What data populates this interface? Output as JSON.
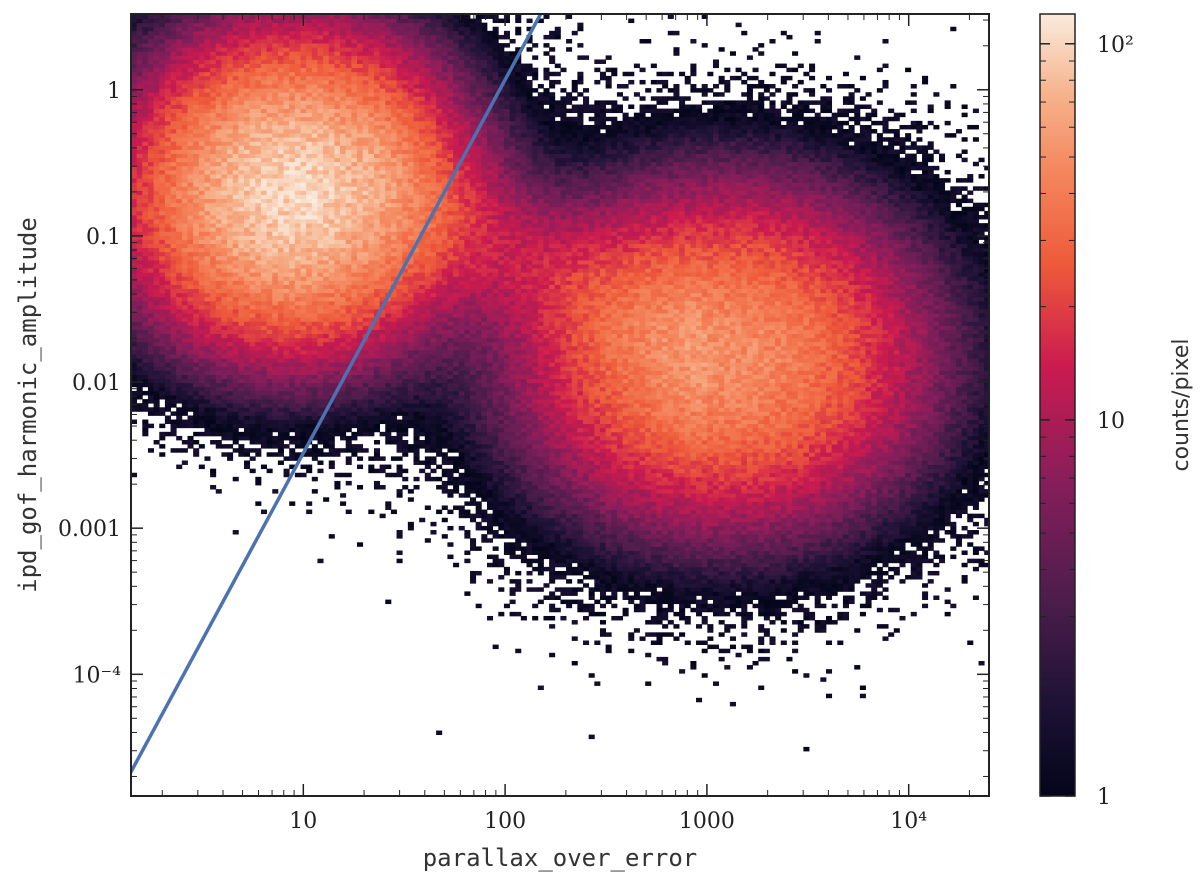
{
  "chart_data": {
    "type": "heatmap",
    "title": "",
    "xlabel": "parallax_over_error",
    "ylabel": "ipd_gof_harmonic_amplitude",
    "x_scale": "log",
    "y_scale": "log",
    "xlim": [
      1.4,
      25000
    ],
    "ylim": [
      1.47e-05,
      3.3
    ],
    "x_ticks": [
      {
        "value": 10,
        "label": "10"
      },
      {
        "value": 100,
        "label": "100"
      },
      {
        "value": 1000,
        "label": "1000"
      },
      {
        "value": 10000,
        "label": "10⁴"
      }
    ],
    "y_ticks": [
      {
        "value": 1,
        "label": "1"
      },
      {
        "value": 0.1,
        "label": "0.1"
      },
      {
        "value": 0.01,
        "label": "0.01"
      },
      {
        "value": 0.001,
        "label": "0.001"
      },
      {
        "value": 0.0001,
        "label": "10⁻⁴"
      }
    ],
    "density_peaks": [
      {
        "name": "",
        "x": 9,
        "y": 0.2,
        "peak_counts": 100
      },
      {
        "name": "",
        "x": 1200,
        "y": 0.015,
        "peak_counts": 50
      }
    ],
    "line": {
      "color": "#4c72b0",
      "points": [
        [
          1.4,
          2.15e-05
        ],
        [
          150,
          3.3
        ]
      ]
    },
    "colorbar": {
      "label": "counts/pixel",
      "scale": "log",
      "range": [
        1,
        120
      ],
      "ticks": [
        {
          "value": 1,
          "label": "1"
        },
        {
          "value": 10,
          "label": "10"
        },
        {
          "value": 100,
          "label": "10²"
        }
      ],
      "colormap": "rocket"
    },
    "grid": false
  }
}
